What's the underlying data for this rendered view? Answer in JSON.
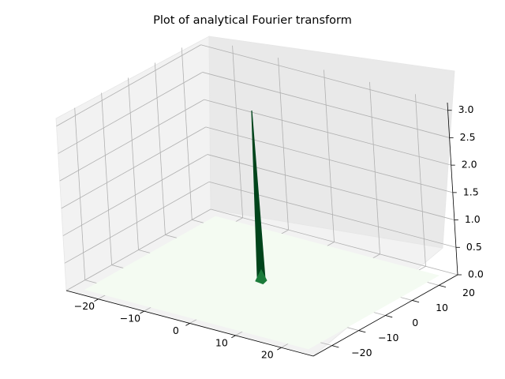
{
  "chart_data": {
    "type": "surface3d",
    "title": "Plot of analytical Fourier transform",
    "xlabel": "",
    "ylabel": "",
    "zlabel": "",
    "x_ticks": [
      "−20",
      "−10",
      "0",
      "10",
      "20"
    ],
    "x_tick_values": [
      -20,
      -10,
      0,
      10,
      20
    ],
    "y_ticks": [
      "−20",
      "−10",
      "0",
      "10",
      "20"
    ],
    "y_tick_values": [
      -20,
      -10,
      0,
      10,
      20
    ],
    "z_ticks": [
      "0.0",
      "0.5",
      "1.0",
      "1.5",
      "2.0",
      "2.5",
      "3.0"
    ],
    "z_tick_values": [
      0,
      0.5,
      1.0,
      1.5,
      2.0,
      2.5,
      3.0
    ],
    "xlim": [
      -27,
      27
    ],
    "ylim": [
      -27,
      27
    ],
    "zlim": [
      0,
      3.14
    ],
    "peak": {
      "x": 0,
      "y": 0,
      "z": 3.14
    },
    "surface_color_low": "#f4fbf2",
    "surface_color_high": "#00441b",
    "grid": true
  }
}
